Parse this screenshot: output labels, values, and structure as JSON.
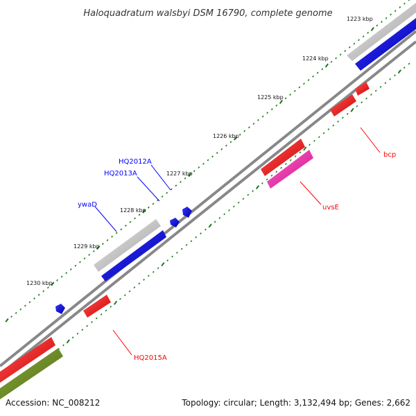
{
  "map": {
    "title": "Haloquadratum walsbyi DSM 16790, complete genome",
    "accession": "Accession: NC_008212",
    "topology": "Topology: circular; Length: 3,132,494 bp; Genes: 2,662",
    "kbp_labels": [
      "1223 kbp",
      "1224 kbp",
      "1225 kbp",
      "1226 kbp",
      "1227 kbp",
      "1228 kbp",
      "1229 kbp",
      "1230 kbp"
    ]
  },
  "genes": {
    "forward": [
      {
        "name": "HQ2012A",
        "color": "#0000ff"
      },
      {
        "name": "HQ2013A",
        "color": "#0000ff"
      },
      {
        "name": "ywaD",
        "color": "#0000ff"
      }
    ],
    "reverse": [
      {
        "name": "bcp",
        "color": "#ff0000"
      },
      {
        "name": "uvsE",
        "color": "#ff0000"
      },
      {
        "name": "HQ2015A",
        "color": "#ff0000"
      }
    ]
  },
  "colors": {
    "backbone": "#888888",
    "cds_forward": "#0000ff",
    "cds_reverse": "#ff0000",
    "gc_gray": "#c8c8c8",
    "pink": "#ff33aa",
    "olive": "#6b8e23",
    "ticks": "#1a7a1a"
  }
}
